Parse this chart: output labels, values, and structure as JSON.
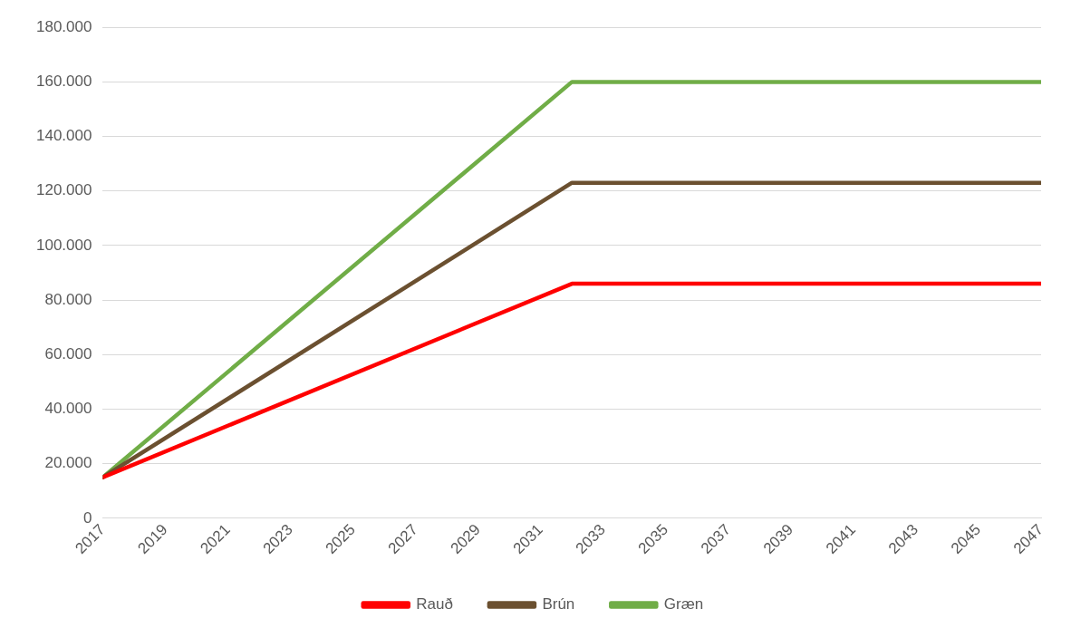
{
  "chart_data": {
    "type": "line",
    "x": [
      2017,
      2032,
      2047
    ],
    "series": [
      {
        "name": "Rauð",
        "color": "#ff0000",
        "values": [
          15000,
          86000,
          86000
        ]
      },
      {
        "name": "Brún",
        "color": "#6b5030",
        "values": [
          15000,
          123000,
          123000
        ]
      },
      {
        "name": "Græn",
        "color": "#70ad47",
        "values": [
          15000,
          160000,
          160000
        ]
      }
    ],
    "xlim": [
      2017,
      2047
    ],
    "xticks": [
      2017,
      2019,
      2021,
      2023,
      2025,
      2027,
      2029,
      2031,
      2033,
      2035,
      2037,
      2039,
      2041,
      2043,
      2045,
      2047
    ],
    "ylim": [
      0,
      180000
    ],
    "yticks": [
      {
        "value": 0,
        "label": "0"
      },
      {
        "value": 20000,
        "label": "20.000"
      },
      {
        "value": 40000,
        "label": "40.000"
      },
      {
        "value": 60000,
        "label": "60.000"
      },
      {
        "value": 80000,
        "label": "80.000"
      },
      {
        "value": 100000,
        "label": "100.000"
      },
      {
        "value": 120000,
        "label": "120.000"
      },
      {
        "value": 140000,
        "label": "140.000"
      },
      {
        "value": 160000,
        "label": "160.000"
      },
      {
        "value": 180000,
        "label": "180.000"
      }
    ],
    "grid": "y",
    "legend": "bottom",
    "marker": "none",
    "line_style": "solid"
  }
}
